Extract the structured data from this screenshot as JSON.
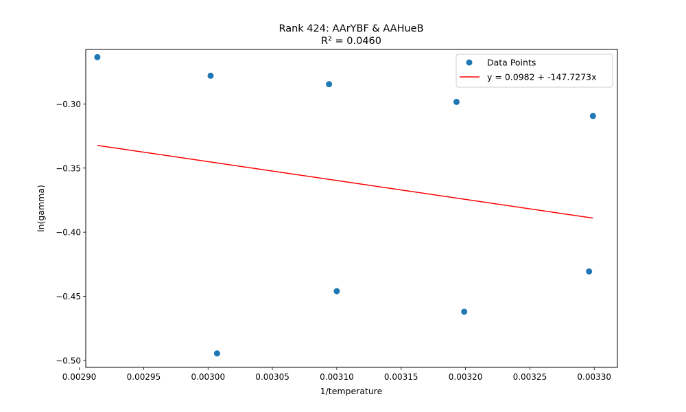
{
  "chart_data": {
    "type": "scatter",
    "title": "Rank 424: AArYBF & AAHueB",
    "subtitle": "R² = 0.0460",
    "xlabel": "1/temperature",
    "ylabel": "ln(gamma)",
    "xlim": [
      0.002905,
      0.003318
    ],
    "ylim": [
      -0.5054,
      -0.2575
    ],
    "xticks": [
      {
        "value": 0.0029,
        "label": "0.00290"
      },
      {
        "value": 0.00295,
        "label": "0.00295"
      },
      {
        "value": 0.003,
        "label": "0.00300"
      },
      {
        "value": 0.00305,
        "label": "0.00305"
      },
      {
        "value": 0.0031,
        "label": "0.00310"
      },
      {
        "value": 0.00315,
        "label": "0.00315"
      },
      {
        "value": 0.0032,
        "label": "0.00320"
      },
      {
        "value": 0.00325,
        "label": "0.00325"
      },
      {
        "value": 0.0033,
        "label": "0.00330"
      }
    ],
    "yticks": [
      {
        "value": -0.3,
        "label": "−0.30"
      },
      {
        "value": -0.35,
        "label": "−0.35"
      },
      {
        "value": -0.4,
        "label": "−0.40"
      },
      {
        "value": -0.45,
        "label": "−0.45"
      },
      {
        "value": -0.5,
        "label": "−0.50"
      }
    ],
    "series": [
      {
        "name": "Data Points",
        "kind": "scatter",
        "color": "#1f77b4",
        "points": [
          {
            "x": 0.002914,
            "y": -0.2635
          },
          {
            "x": 0.003002,
            "y": -0.278
          },
          {
            "x": 0.003007,
            "y": -0.4945
          },
          {
            "x": 0.003094,
            "y": -0.2846
          },
          {
            "x": 0.0031,
            "y": -0.446
          },
          {
            "x": 0.003193,
            "y": -0.2984
          },
          {
            "x": 0.003199,
            "y": -0.462
          },
          {
            "x": 0.003296,
            "y": -0.4306
          },
          {
            "x": 0.003299,
            "y": -0.3094
          }
        ]
      },
      {
        "name": "y = 0.0982 + -147.7273x",
        "kind": "line",
        "color": "#ff0000",
        "points": [
          {
            "x": 0.002914,
            "y": -0.3323
          },
          {
            "x": 0.003299,
            "y": -0.389
          }
        ]
      }
    ],
    "legend_position": "top-right",
    "grid": false
  }
}
